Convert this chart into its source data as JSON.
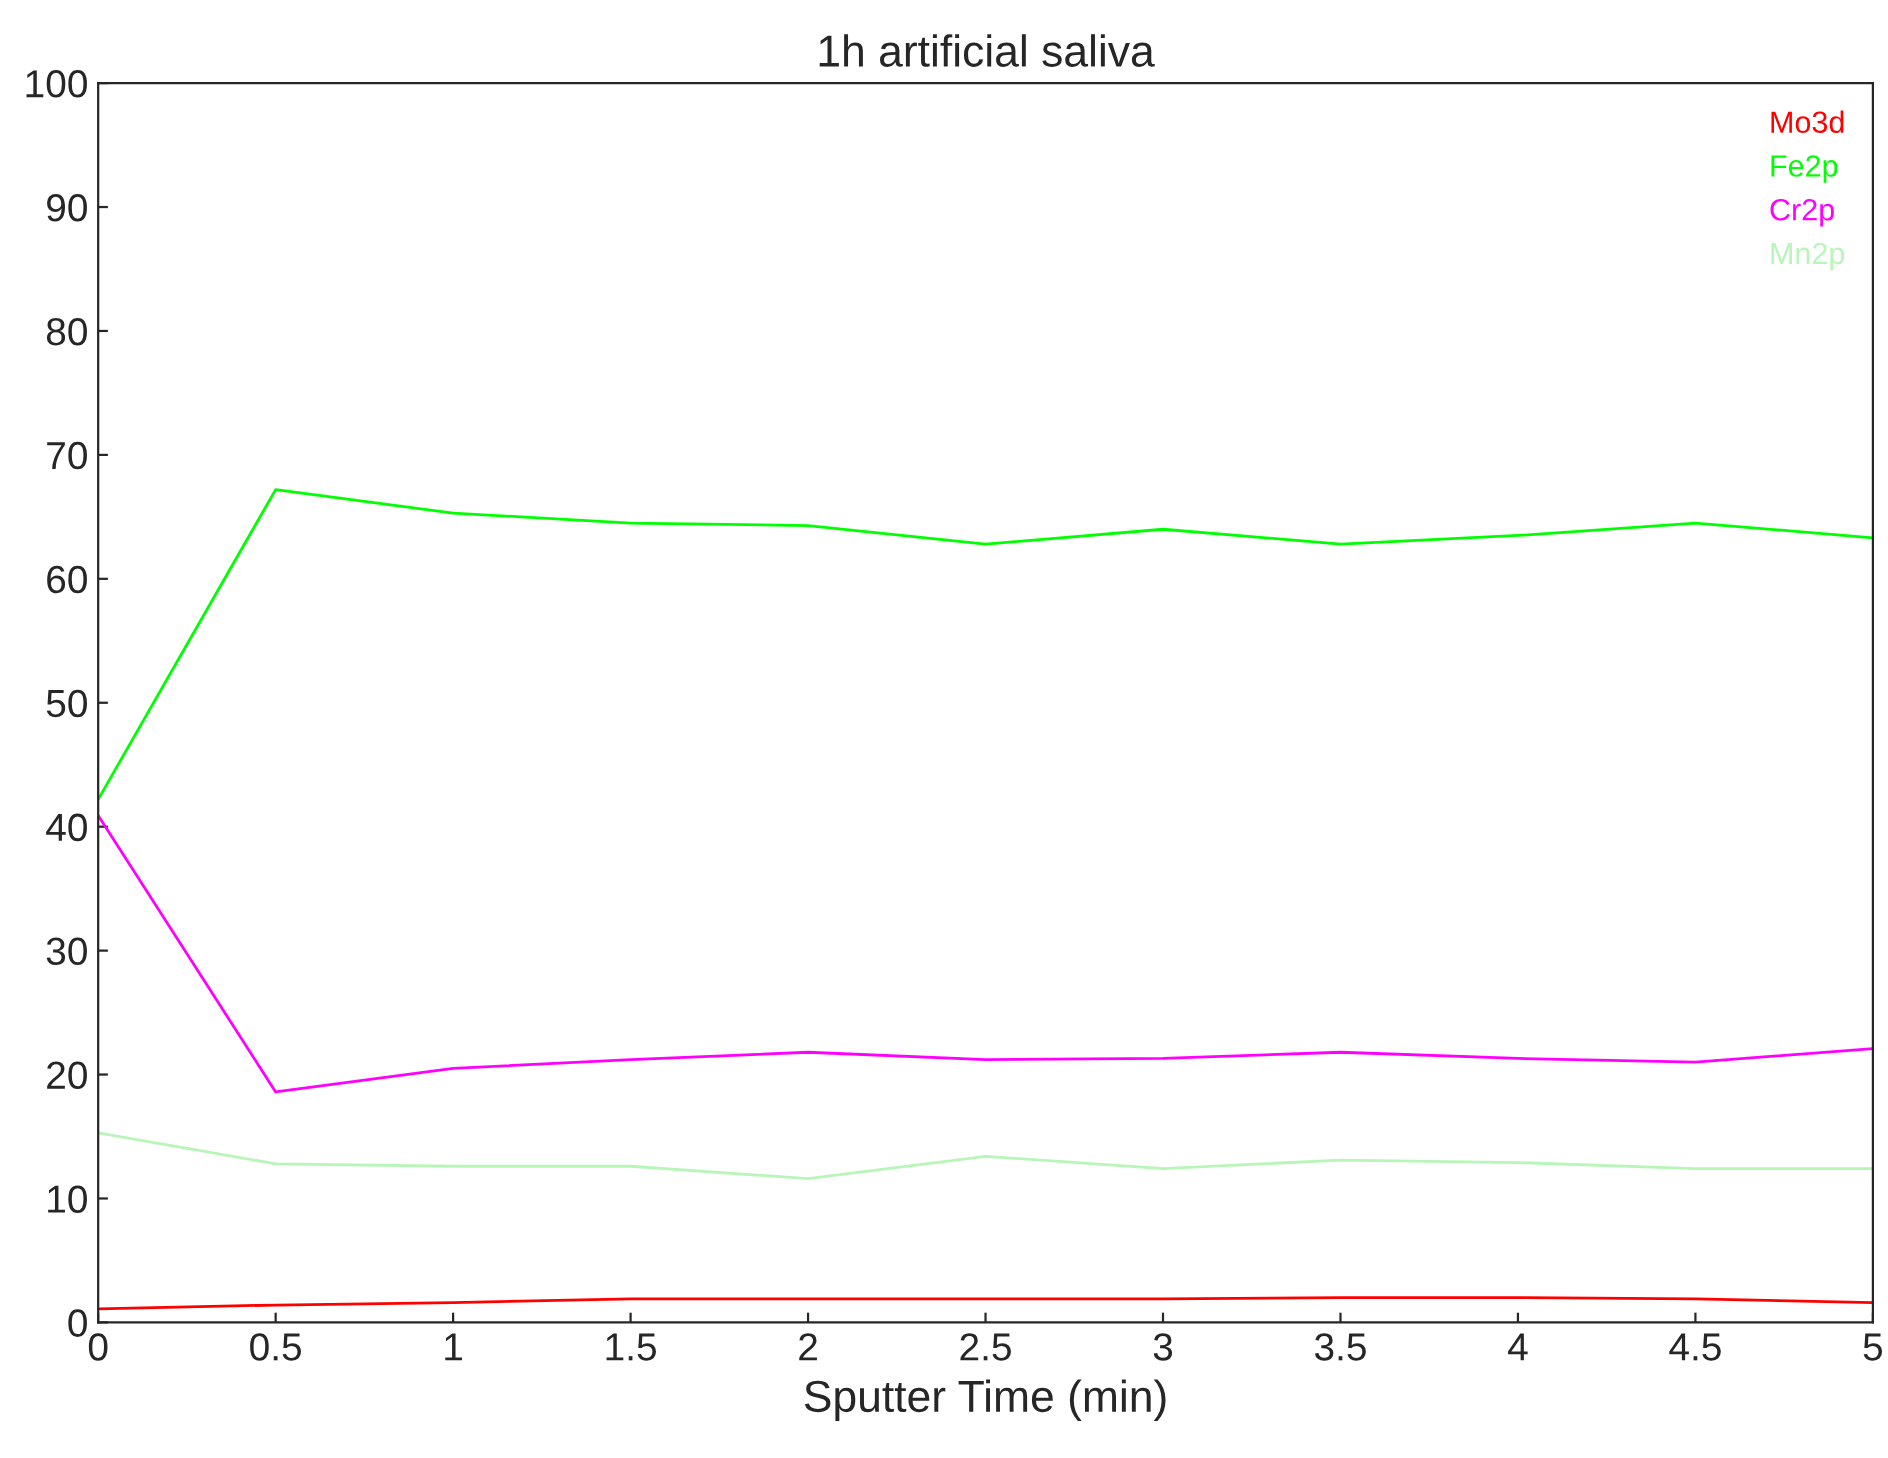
{
  "chart_data": {
    "type": "line",
    "title": "1h artificial saliva",
    "xlabel": "Sputter Time (min)",
    "x": [
      0,
      0.5,
      1,
      1.5,
      2,
      2.5,
      3,
      3.5,
      4,
      4.5,
      5
    ],
    "series": [
      {
        "name": "Mo3d",
        "color": "#ff0000",
        "values": [
          1.1,
          1.4,
          1.6,
          1.9,
          1.9,
          1.9,
          1.9,
          2.0,
          2.0,
          1.9,
          1.6
        ]
      },
      {
        "name": "Fe2p",
        "color": "#00ff00",
        "values": [
          42.2,
          67.2,
          65.3,
          64.5,
          64.3,
          62.8,
          64.0,
          62.8,
          63.5,
          64.5,
          63.3
        ]
      },
      {
        "name": "Cr2p",
        "color": "#ff00ff",
        "values": [
          40.9,
          18.6,
          20.5,
          21.2,
          21.8,
          21.2,
          21.3,
          21.8,
          21.3,
          21.0,
          22.1
        ]
      },
      {
        "name": "Mn2p",
        "color": "#b8f5b8",
        "values": [
          15.3,
          12.8,
          12.6,
          12.6,
          11.6,
          13.4,
          12.4,
          13.1,
          12.9,
          12.4,
          12.4
        ]
      }
    ],
    "xlim": [
      0,
      5
    ],
    "xticks": [
      0,
      0.5,
      1,
      1.5,
      2,
      2.5,
      3,
      3.5,
      4,
      4.5,
      5
    ],
    "ylim": [
      0,
      100
    ],
    "yticks": [
      0,
      10,
      20,
      30,
      40,
      50,
      60,
      70,
      80,
      90,
      100
    ],
    "legend": "top right",
    "grid": false,
    "marker": "none",
    "line_style": "solid"
  }
}
